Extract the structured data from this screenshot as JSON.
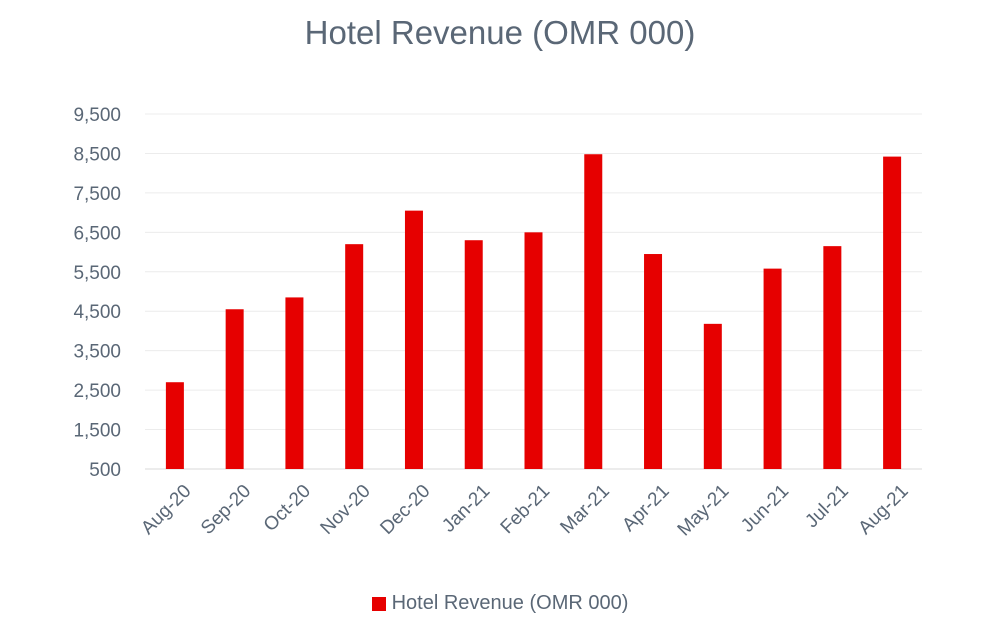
{
  "chart_data": {
    "type": "bar",
    "title": "Hotel Revenue (OMR 000)",
    "categories": [
      "Aug-20",
      "Sep-20",
      "Oct-20",
      "Nov-20",
      "Dec-20",
      "Jan-21",
      "Feb-21",
      "Mar-21",
      "Apr-21",
      "May-21",
      "Jun-21",
      "Jul-21",
      "Aug-21"
    ],
    "series": [
      {
        "name": "Hotel Revenue (OMR 000)",
        "values": [
          2700,
          4550,
          4850,
          6200,
          7050,
          6300,
          6500,
          8480,
          5950,
          4180,
          5580,
          6150,
          8420
        ]
      }
    ],
    "yticks": [
      "9,500",
      "8,500",
      "7,500",
      "6,500",
      "5,500",
      "4,500",
      "3,500",
      "2,500",
      "1,500",
      "500"
    ],
    "ylim": [
      500,
      9500
    ],
    "xlabel": "",
    "ylabel": "",
    "grid": true,
    "legend_position": "bottom",
    "colors": {
      "bar": "#e60000",
      "grid": "#ececec",
      "text": "#5a6776",
      "axis": "#d9d9d9"
    }
  }
}
